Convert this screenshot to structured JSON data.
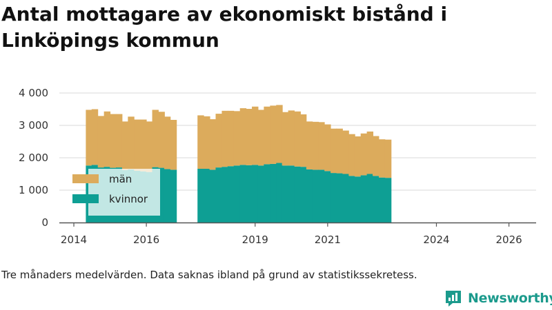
{
  "chart_data": {
    "type": "bar",
    "stacked": true,
    "title": "Antal mottagare av ekonomiskt bistånd i Linköpings kommun",
    "xlabel": "",
    "ylabel": "",
    "ylim": [
      0,
      4000
    ],
    "yticks": [
      0,
      1000,
      2000,
      3000,
      4000
    ],
    "ytick_labels": [
      "0",
      "1 000",
      "2 000",
      "3 000",
      "4 000"
    ],
    "xticks": [
      2014,
      2016,
      2019,
      2021,
      2024,
      2026
    ],
    "xtick_labels": [
      "2014",
      "2016",
      "2019",
      "2021",
      "2024",
      "2026"
    ],
    "xlim": [
      2013.6,
      2026.75
    ],
    "legend_position": "left",
    "series": [
      {
        "name": "kvinnor",
        "color": "#0e9f94",
        "values": [
          1760,
          1780,
          1700,
          1720,
          1690,
          1700,
          1620,
          1640,
          1600,
          1580,
          1560,
          1710,
          1690,
          1650,
          1630,
          1660,
          1660,
          1630,
          1700,
          1720,
          1740,
          1760,
          1780,
          1770,
          1780,
          1760,
          1800,
          1810,
          1840,
          1760,
          1760,
          1730,
          1720,
          1640,
          1630,
          1630,
          1590,
          1530,
          1520,
          1500,
          1440,
          1420,
          1460,
          1500,
          1440,
          1390,
          1380
        ]
      },
      {
        "name": "män",
        "color": "#dcab5c",
        "values": [
          1720,
          1720,
          1590,
          1710,
          1660,
          1650,
          1500,
          1630,
          1580,
          1600,
          1560,
          1770,
          1730,
          1620,
          1540,
          1650,
          1620,
          1560,
          1660,
          1730,
          1710,
          1680,
          1750,
          1740,
          1800,
          1720,
          1780,
          1800,
          1790,
          1650,
          1700,
          1700,
          1620,
          1480,
          1480,
          1470,
          1440,
          1370,
          1380,
          1340,
          1290,
          1240,
          1290,
          1310,
          1230,
          1180,
          1180
        ]
      }
    ],
    "dates": [
      2014.42,
      2014.58,
      2014.75,
      2014.92,
      2015.08,
      2015.25,
      2015.42,
      2015.58,
      2015.75,
      2015.92,
      2016.08,
      2016.25,
      2016.42,
      2016.58,
      2016.75,
      2017.5,
      2017.67,
      2017.83,
      2018.0,
      2018.17,
      2018.33,
      2018.5,
      2018.67,
      2018.83,
      2019.0,
      2019.17,
      2019.33,
      2019.5,
      2019.67,
      2019.83,
      2020.0,
      2020.17,
      2020.33,
      2020.5,
      2020.67,
      2020.83,
      2021.0,
      2021.17,
      2021.33,
      2021.5,
      2021.67,
      2021.83,
      2022.0,
      2022.17,
      2022.33,
      2022.5,
      2022.67
    ],
    "date_note": "x positions are in display-axis units of the figure's time axis"
  },
  "note": "Tre månaders medelvärden. Data saknas ibland på grund av statistikssekretess.",
  "brand": {
    "name": "Newsworthy",
    "icon": "bar-chart-bubble-icon",
    "color": "#1b9a8c"
  }
}
